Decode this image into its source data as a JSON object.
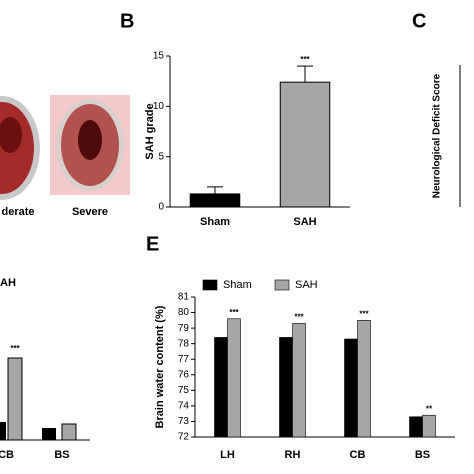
{
  "panel_labels": [
    "B",
    "C",
    "E"
  ],
  "images": {
    "left_caption": "derate",
    "right_caption": "Severe"
  },
  "panel_c": {
    "y_label": "Neurological Deficit Score"
  },
  "panel_d": {
    "legend_fragment": "AH",
    "significance": "***",
    "categories": [
      "CB",
      "BS"
    ]
  },
  "chart_data": [
    {
      "type": "bar",
      "y_label": "SAH grade",
      "categories": [
        "Sham",
        "SAH"
      ],
      "values": [
        1.3,
        12.4
      ],
      "errors": [
        0.7,
        1.6
      ],
      "colors": [
        "#000000",
        "#a6a6a6"
      ],
      "significance": {
        "SAH": "***"
      },
      "ylim": [
        0,
        15
      ],
      "yticks": [
        0,
        5,
        10,
        15
      ]
    },
    {
      "type": "grouped-bar",
      "y_label": "Brain water content (%)",
      "categories": [
        "LH",
        "RH",
        "CB",
        "BS"
      ],
      "series": [
        {
          "name": "Sham",
          "color": "#000000",
          "values": [
            78.4,
            78.4,
            78.3,
            73.3
          ]
        },
        {
          "name": "SAH",
          "color": "#a6a6a6",
          "values": [
            79.6,
            79.3,
            79.5,
            73.4
          ],
          "significance": [
            "***",
            "***",
            "***",
            "**"
          ]
        }
      ],
      "ylim": [
        72,
        81
      ],
      "yticks": [
        72,
        73,
        74,
        75,
        76,
        77,
        78,
        79,
        80,
        81
      ],
      "legend": "top"
    }
  ]
}
